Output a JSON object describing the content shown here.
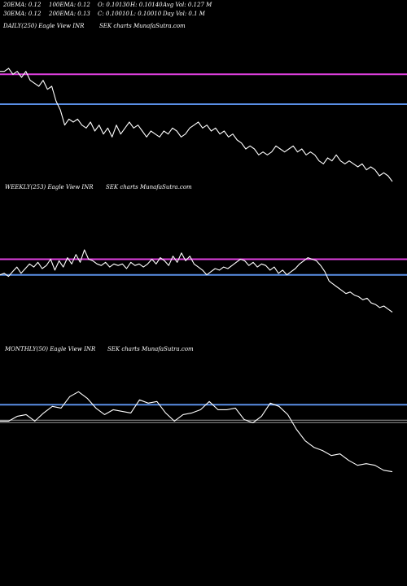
{
  "header": {
    "rows": [
      [
        "20EMA: 0.12",
        "100EMA: 0.12",
        "O: 0.10130",
        "H: 0.10140",
        "Avg Vol: 0.127 M"
      ],
      [
        "30EMA: 0.12",
        "200EMA: 0.13",
        "C: 0.10010",
        "L: 0.10010",
        "Day Vol: 0.1 M"
      ]
    ]
  },
  "colors": {
    "background": "#000000",
    "price_line": "#ffffff",
    "ema_magenta": "#e040e0",
    "ema_blue": "#5a8fe6",
    "ema_gray": "#9a9a9a"
  },
  "chart_data": [
    {
      "type": "line",
      "title": "DAILY(250) Eagle   View   INR",
      "subtitle": "SEK charts MunafaSutra.com",
      "series": [
        {
          "values": [
            0.137,
            0.137,
            0.138,
            0.136,
            0.137,
            0.135,
            0.137,
            0.134,
            0.133,
            0.132,
            0.134,
            0.131,
            0.132,
            0.127,
            0.124,
            0.119,
            0.121,
            0.12,
            0.121,
            0.119,
            0.118,
            0.12,
            0.117,
            0.119,
            0.116,
            0.118,
            0.115,
            0.119,
            0.116,
            0.118,
            0.12,
            0.118,
            0.119,
            0.117,
            0.115,
            0.117,
            0.116,
            0.115,
            0.117,
            0.116,
            0.118,
            0.117,
            0.115,
            0.116,
            0.118,
            0.119,
            0.12,
            0.118,
            0.119,
            0.117,
            0.118,
            0.116,
            0.117,
            0.115,
            0.116,
            0.114,
            0.113,
            0.111,
            0.112,
            0.111,
            0.109,
            0.11,
            0.109,
            0.11,
            0.112,
            0.111,
            0.11,
            0.111,
            0.112,
            0.11,
            0.111,
            0.109,
            0.11,
            0.109,
            0.107,
            0.106,
            0.108,
            0.107,
            0.109,
            0.107,
            0.106,
            0.107,
            0.106,
            0.105,
            0.106,
            0.104,
            0.105,
            0.104,
            0.102,
            0.103,
            0.102,
            0.1001
          ]
        }
      ],
      "ema_levels": {
        "magenta": 0.136,
        "blue": 0.126
      },
      "ylim": [
        0.096,
        0.15
      ]
    },
    {
      "type": "line",
      "title": "WEEKLY(253) Eagle   View   INR",
      "subtitle": "SEK charts MunafaSutra.com",
      "series": [
        {
          "values": [
            0.124,
            0.125,
            0.123,
            0.126,
            0.129,
            0.125,
            0.128,
            0.131,
            0.129,
            0.132,
            0.128,
            0.13,
            0.134,
            0.127,
            0.133,
            0.129,
            0.135,
            0.131,
            0.137,
            0.132,
            0.14,
            0.134,
            0.133,
            0.131,
            0.13,
            0.132,
            0.129,
            0.131,
            0.13,
            0.131,
            0.128,
            0.132,
            0.13,
            0.131,
            0.129,
            0.131,
            0.134,
            0.131,
            0.135,
            0.133,
            0.13,
            0.136,
            0.132,
            0.138,
            0.133,
            0.136,
            0.131,
            0.129,
            0.127,
            0.124,
            0.126,
            0.128,
            0.127,
            0.129,
            0.128,
            0.13,
            0.132,
            0.134,
            0.133,
            0.13,
            0.132,
            0.129,
            0.131,
            0.13,
            0.127,
            0.129,
            0.125,
            0.127,
            0.124,
            0.126,
            0.128,
            0.131,
            0.133,
            0.135,
            0.134,
            0.133,
            0.13,
            0.126,
            0.12,
            0.118,
            0.116,
            0.114,
            0.112,
            0.113,
            0.111,
            0.11,
            0.108,
            0.109,
            0.106,
            0.105,
            0.103,
            0.104,
            0.102,
            0.1001
          ]
        }
      ],
      "ema_levels": {
        "magenta": 0.134,
        "blue": 0.124
      },
      "ylim": [
        0.08,
        0.176
      ]
    },
    {
      "type": "line",
      "title": "MONTHLY(50) Eagle   View   INR",
      "subtitle": "SEK charts MunafaSutra.com",
      "series": [
        {
          "values": [
            0.131,
            0.131,
            0.134,
            0.135,
            0.131,
            0.136,
            0.14,
            0.139,
            0.146,
            0.149,
            0.145,
            0.139,
            0.135,
            0.138,
            0.137,
            0.136,
            0.144,
            0.142,
            0.143,
            0.136,
            0.131,
            0.135,
            0.136,
            0.138,
            0.143,
            0.138,
            0.138,
            0.139,
            0.132,
            0.13,
            0.134,
            0.142,
            0.14,
            0.135,
            0.126,
            0.119,
            0.115,
            0.113,
            0.11,
            0.111,
            0.107,
            0.104,
            0.105,
            0.104,
            0.101,
            0.1001
          ]
        }
      ],
      "ema_levels": {
        "blue": 0.141,
        "gray": 0.1308
      },
      "ylim": [
        0.08,
        0.172
      ]
    }
  ]
}
